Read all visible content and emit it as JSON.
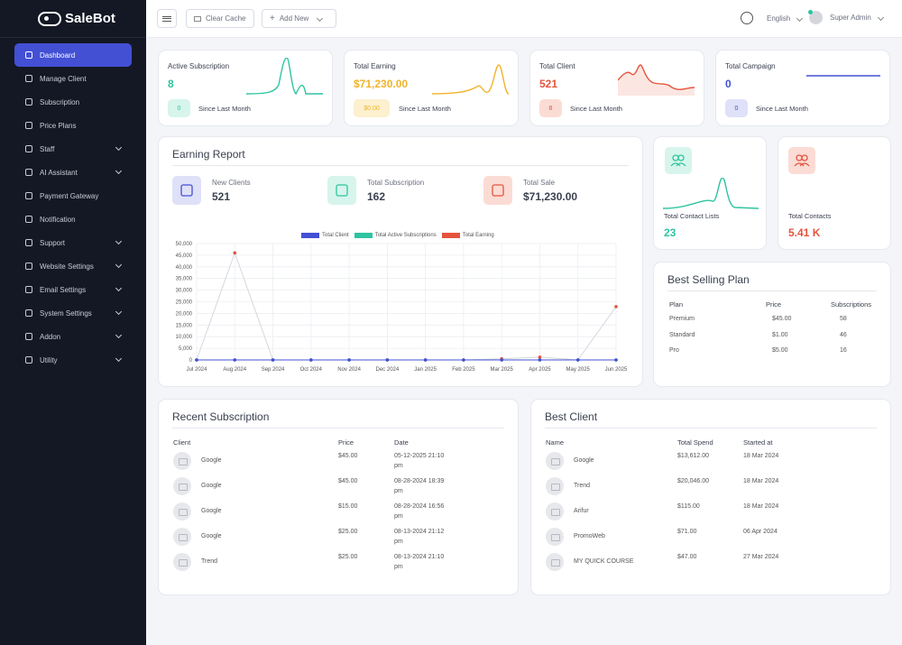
{
  "app": {
    "logo": "SaleBot"
  },
  "sidebar": {
    "items": [
      {
        "label": "Dashboard",
        "icon": "dashboard-icon",
        "active": true,
        "chevron": false
      },
      {
        "label": "Manage Client",
        "icon": "user-icon",
        "chevron": false
      },
      {
        "label": "Subscription",
        "icon": "card-icon",
        "chevron": false
      },
      {
        "label": "Price Plans",
        "icon": "tag-icon",
        "chevron": false
      },
      {
        "label": "Staff",
        "icon": "users-icon",
        "chevron": true
      },
      {
        "label": "AI Assistant",
        "icon": "robot-icon",
        "chevron": true
      },
      {
        "label": "Payment Gateway",
        "icon": "wallet-icon",
        "chevron": false
      },
      {
        "label": "Notification",
        "icon": "bell-icon",
        "chevron": false
      },
      {
        "label": "Support",
        "icon": "support-icon",
        "chevron": true
      },
      {
        "label": "Website Settings",
        "icon": "gear-icon",
        "chevron": true
      },
      {
        "label": "Email Settings",
        "icon": "mail-icon",
        "chevron": true
      },
      {
        "label": "System Settings",
        "icon": "gear-icon",
        "chevron": true
      },
      {
        "label": "Addon",
        "icon": "puzzle-icon",
        "chevron": true
      },
      {
        "label": "Utility",
        "icon": "tool-icon",
        "chevron": true
      }
    ]
  },
  "topbar": {
    "clear_cache": "Clear Cache",
    "add_new": "Add New",
    "language": "English",
    "user": "Super Admin"
  },
  "stats": [
    {
      "title": "Active Subscription",
      "value": "8",
      "badge": "0",
      "since": "Since Last Month",
      "color": "#2ec4a0",
      "badge_bg": "#d7f5ec"
    },
    {
      "title": "Total Earning",
      "value": "$71,230.00",
      "badge": "$0.00",
      "since": "Since Last Month",
      "color": "#f0b429",
      "badge_bg": "#fdf0cf"
    },
    {
      "title": "Total Client",
      "value": "521",
      "badge": "8",
      "since": "Since Last Month",
      "color": "#e5533d",
      "badge_bg": "#fbdcd5"
    },
    {
      "title": "Total Campaign",
      "value": "0",
      "badge": "0",
      "since": "Since Last Month",
      "color": "#4350d4",
      "badge_bg": "#dfe1f8"
    }
  ],
  "earning_report": {
    "title": "Earning Report",
    "kpis": [
      {
        "label": "New Clients",
        "value": "521",
        "color": "#4350d4",
        "bg": "#dfe1f8"
      },
      {
        "label": "Total Subscription",
        "value": "162",
        "color": "#2ec4a0",
        "bg": "#d7f5ec"
      },
      {
        "label": "Total Sale",
        "value": "$71,230.00",
        "color": "#e5533d",
        "bg": "#fbdcd5"
      }
    ]
  },
  "chart_data": {
    "type": "line",
    "categories": [
      "Jul 2024",
      "Aug 2024",
      "Sep 2024",
      "Oct 2024",
      "Nov 2024",
      "Dec 2024",
      "Jan 2025",
      "Feb 2025",
      "Mar 2025",
      "Apr 2025",
      "May 2025",
      "Jun 2025"
    ],
    "series": [
      {
        "name": "Total Client",
        "color": "#4350d4",
        "values": [
          0,
          0,
          0,
          0,
          0,
          0,
          0,
          0,
          0,
          0,
          0,
          0
        ]
      },
      {
        "name": "Total Active Subscriptions",
        "color": "#2ec4a0",
        "values": [
          0,
          0,
          0,
          0,
          0,
          0,
          0,
          0,
          0,
          0,
          0,
          0
        ]
      },
      {
        "name": "Total Earning",
        "color": "#e5533d",
        "values": [
          0,
          46000,
          0,
          0,
          0,
          0,
          0,
          0,
          500,
          1200,
          0,
          22900
        ]
      }
    ],
    "yticks": [
      "50,000",
      "45,000",
      "40,000",
      "35,000",
      "30,000",
      "25,000",
      "20,000",
      "15,000",
      "10,000",
      "5,000",
      "0"
    ],
    "ylim": [
      0,
      50000
    ],
    "grid": true,
    "legend": "top"
  },
  "contact_lists": {
    "title": "Total Contact Lists",
    "value": "23",
    "color": "#2ec4a0",
    "bg": "#d7f5ec"
  },
  "contacts": {
    "title": "Total Contacts",
    "value": "5.41 K",
    "color": "#e5533d",
    "bg": "#fbdcd5"
  },
  "best_selling": {
    "title": "Best Selling Plan",
    "headers": [
      "Plan",
      "Price",
      "Subscriptions"
    ],
    "rows": [
      [
        "Premium",
        "$45.00",
        "58"
      ],
      [
        "Standard",
        "$1.00",
        "46"
      ],
      [
        "Pro",
        "$5.00",
        "16"
      ]
    ]
  },
  "recent_subscription": {
    "title": "Recent Subscription",
    "headers": [
      "Client",
      "Price",
      "Date"
    ],
    "rows": [
      [
        "Google",
        "$45.00",
        "05-12-2025 21:10",
        "pm"
      ],
      [
        "Google",
        "$45.00",
        "08-28-2024 18:39",
        "pm"
      ],
      [
        "Google",
        "$15.00",
        "08-28-2024 16:56",
        "pm"
      ],
      [
        "Google",
        "$25.00",
        "08-13-2024 21:12",
        "pm"
      ],
      [
        "Trend",
        "$25.00",
        "08-13-2024 21:10",
        "pm"
      ]
    ]
  },
  "best_client": {
    "title": "Best Client",
    "headers": [
      "Name",
      "Total Spend",
      "Started at"
    ],
    "rows": [
      [
        "Google",
        "$13,612.00",
        "18 Mar 2024"
      ],
      [
        "Trend",
        "$20,046.00",
        "18 Mar 2024"
      ],
      [
        "Arifur",
        "$115.00",
        "18 Mar 2024"
      ],
      [
        "PromoWeb",
        "$71.00",
        "06 Apr 2024"
      ],
      [
        "MY QUICK COURSE",
        "$47.00",
        "27 Mar 2024"
      ]
    ]
  }
}
